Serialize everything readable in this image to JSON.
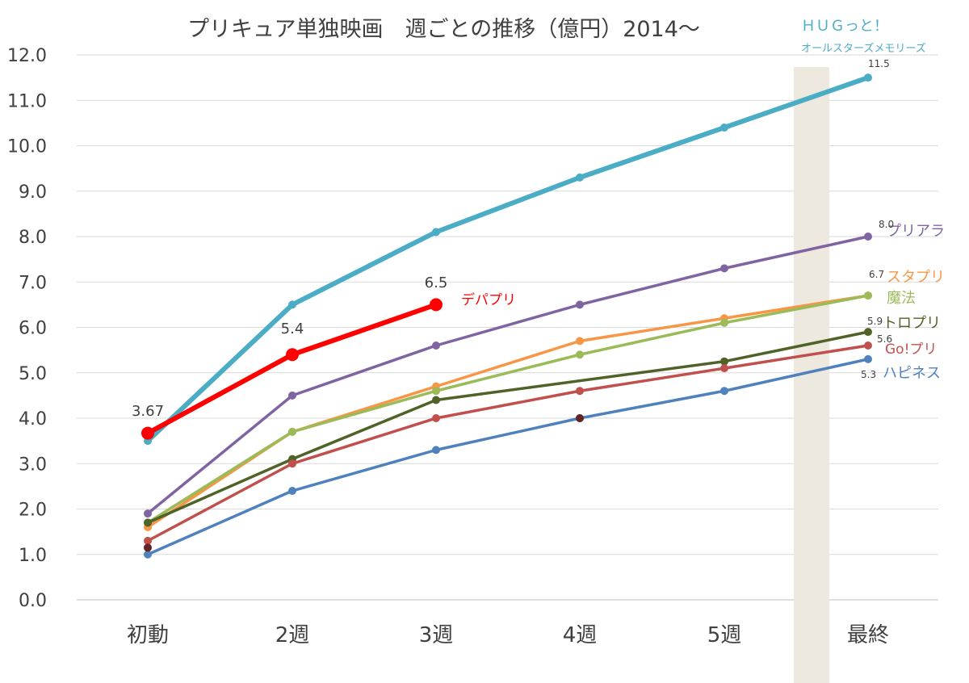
{
  "chart_data": {
    "type": "line",
    "title": "プリキュア単独映画　週ごとの推移（億円）2014～",
    "categories": [
      "初動",
      "2週",
      "3週",
      "4週",
      "5週",
      "最終"
    ],
    "ylim": [
      0,
      12
    ],
    "yticks": [
      "0.0",
      "1.0",
      "2.0",
      "3.0",
      "4.0",
      "5.0",
      "6.0",
      "7.0",
      "8.0",
      "9.0",
      "10.0",
      "11.0",
      "12.0"
    ],
    "grid": true,
    "legend": "none",
    "series": [
      {
        "name": "ＨＵＧっと！",
        "subname": "オールスターズメモリーズ",
        "color": "#4bacc6",
        "width": 6,
        "values": [
          3.5,
          6.5,
          8.1,
          9.3,
          10.4,
          11.5
        ],
        "end_label": "11.5"
      },
      {
        "name": "プリアラ",
        "color": "#8064a2",
        "width": 3.5,
        "values": [
          1.9,
          4.5,
          5.6,
          6.5,
          7.3,
          8.0
        ],
        "end_label": "8.0"
      },
      {
        "name": "スタプリ",
        "color": "#f79646",
        "width": 3.5,
        "values": [
          1.6,
          3.7,
          4.7,
          5.7,
          6.2,
          6.7
        ],
        "end_label": "6.7"
      },
      {
        "name": "魔法",
        "color": "#9bbb59",
        "width": 3.5,
        "values": [
          1.7,
          3.7,
          4.6,
          5.4,
          6.1,
          6.7
        ],
        "end_label": ""
      },
      {
        "name": "トロプリ",
        "color": "#4f6228",
        "width": 3.5,
        "values": [
          1.7,
          3.1,
          4.4,
          null,
          5.25,
          5.9
        ],
        "end_label": "5.9"
      },
      {
        "name": "Go!プリ",
        "color": "#c0504d",
        "width": 3.5,
        "values": [
          1.3,
          3.0,
          4.0,
          4.6,
          5.1,
          5.6
        ],
        "end_label": "5.6"
      },
      {
        "name": "ハピネス",
        "color": "#4f81bd",
        "width": 3.5,
        "values": [
          1.0,
          2.4,
          3.3,
          4.0,
          4.6,
          5.3
        ],
        "end_label": "5.3"
      },
      {
        "name": "デパプリ",
        "color": "#ff0000",
        "width": 6,
        "values": [
          3.67,
          5.4,
          6.5,
          null,
          null,
          null
        ],
        "labels": [
          "3.67",
          "5.4",
          "6.5"
        ]
      }
    ],
    "extra_points": [
      {
        "category": "初動",
        "value": 1.15,
        "color": "#632523"
      },
      {
        "category": "4週",
        "value": 4.0,
        "color": "#632523"
      }
    ]
  }
}
